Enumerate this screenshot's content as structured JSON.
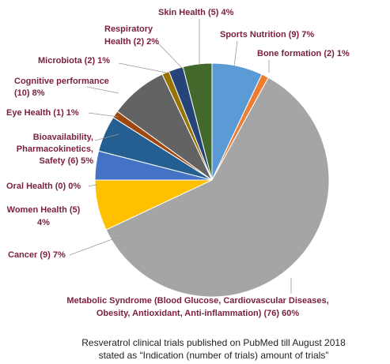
{
  "chart_data": {
    "type": "pie",
    "categories": [
      [
        "Sports Nutrition (9) 7%"
      ],
      [
        "Bone formation (2) 1%"
      ],
      [
        "Metabolic Syndrome (Blood Glucose, Cardiovascular Diseases,",
        "Obesity, Antioxidant, Anti-inflammation)  (76) 60%"
      ],
      [
        "Cancer (9) 7%"
      ],
      [
        "Women Health (5)",
        "4%"
      ],
      [
        "Oral Health (0) 0%"
      ],
      [
        "Bioavailability,",
        "Pharmacokinetics,",
        "Safety (6) 5%"
      ],
      [
        "Eye Health (1) 1%"
      ],
      [
        "Cognitive performance",
        "(10) 8%"
      ],
      [
        "Microbiota (2) 1%"
      ],
      [
        "Respiratory",
        "Health (2) 2%"
      ],
      [
        "Skin Health (5) 4%"
      ]
    ],
    "values": [
      7,
      1,
      60,
      7,
      4,
      0,
      5,
      1,
      8,
      1,
      2,
      4
    ],
    "colors": [
      "#5b9bd5",
      "#ed7d31",
      "#a5a5a5",
      "#ffc000",
      "#4472c4",
      "#70ad47",
      "#255e91",
      "#9e480e",
      "#636363",
      "#997300",
      "#264478",
      "#43682b"
    ],
    "caption": [
      "Resveratrol clinical trials published on PubMed till August 2018",
      "stated as “Indication (number of trials) amount of trials”"
    ]
  }
}
